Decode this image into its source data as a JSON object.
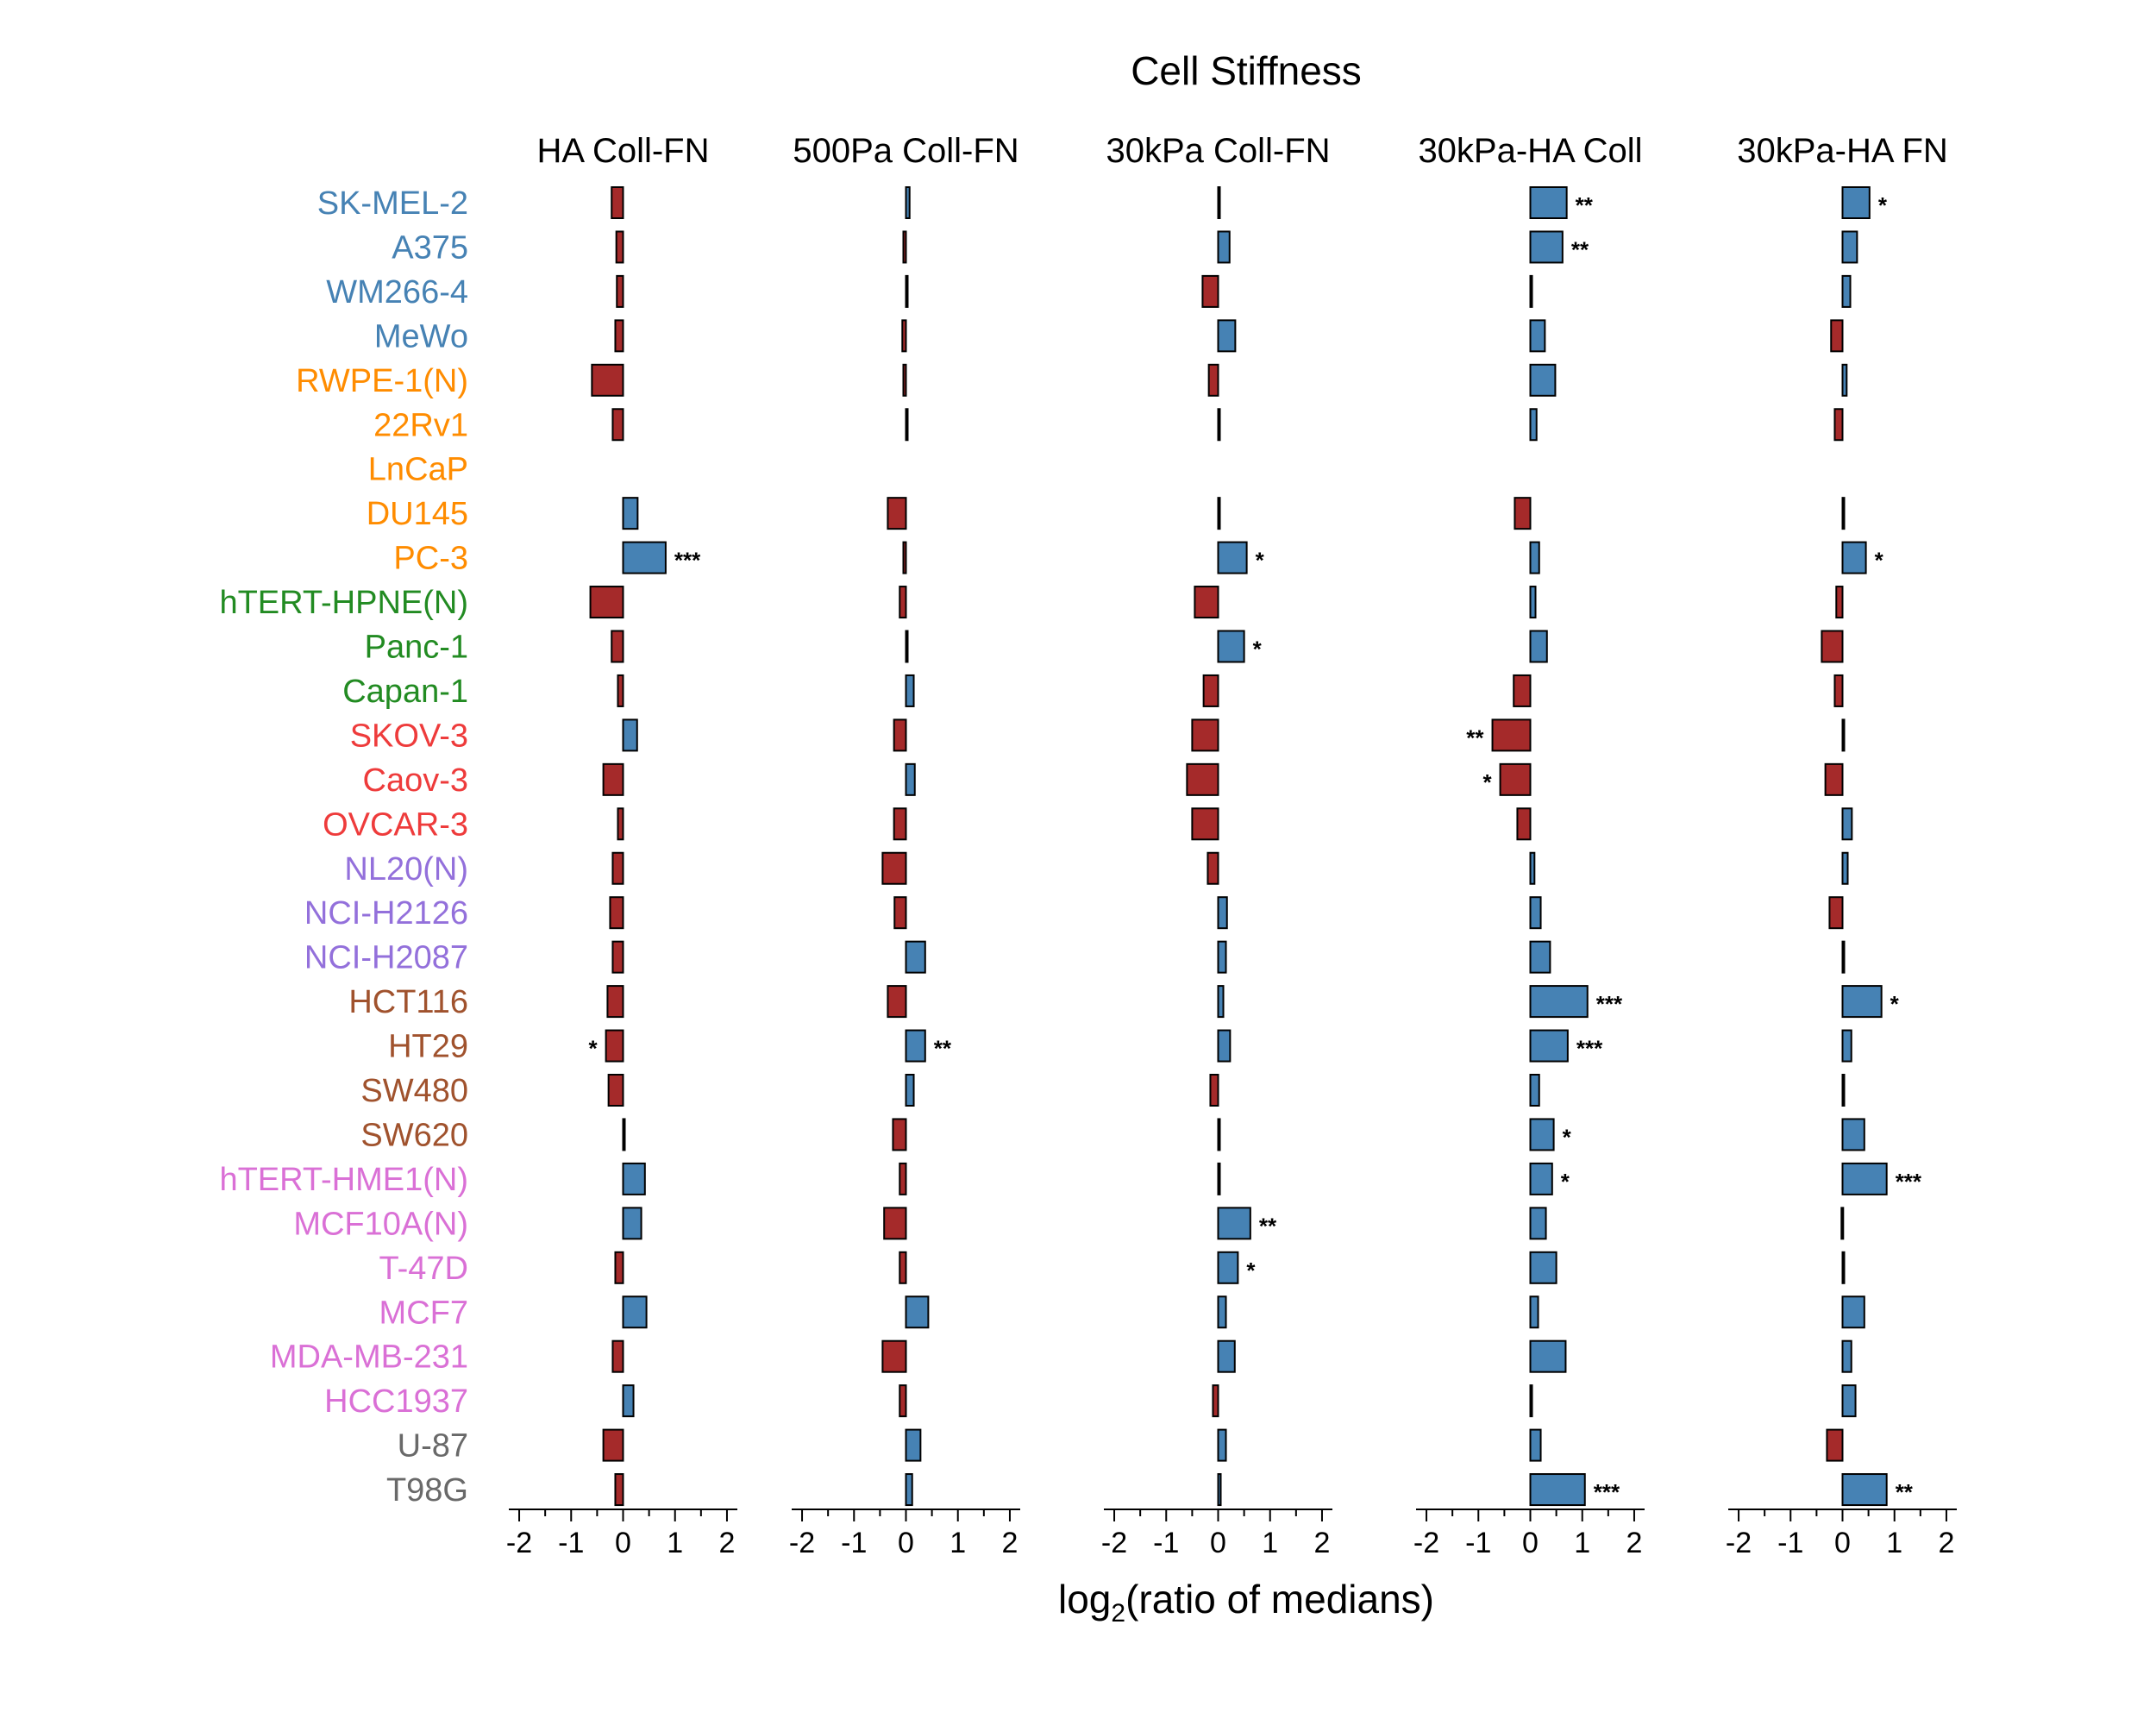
{
  "chart_data": {
    "type": "bar",
    "title": "Cell Stiffness",
    "xlabel": "log2(ratio of medians)",
    "xlabel_parts": {
      "base": "log",
      "subscript": "2",
      "rest": "(ratio of medians)"
    },
    "xlim": [
      -2.2,
      2.2
    ],
    "xticks": [
      -2,
      -1,
      0,
      1,
      2
    ],
    "xtick_labels": [
      "-2",
      "-1",
      "0",
      "1",
      "2"
    ],
    "colors": {
      "positive": "#4682B4",
      "negative": "#A52A2A"
    },
    "categories": [
      "SK-MEL-2",
      "A375",
      "WM266-4",
      "MeWo",
      "RWPE-1(N)",
      "22Rv1",
      "LnCaP",
      "DU145",
      "PC-3",
      "hTERT-HPNE(N)",
      "Panc-1",
      "Capan-1",
      "SKOV-3",
      "Caov-3",
      "OVCAR-3",
      "NL20(N)",
      "NCI-H2126",
      "NCI-H2087",
      "HCT116",
      "HT29",
      "SW480",
      "SW620",
      "hTERT-HME1(N)",
      "MCF10A(N)",
      "T-47D",
      "MCF7",
      "MDA-MB-231",
      "HCC1937",
      "U-87",
      "T98G"
    ],
    "category_colors": [
      "#4682B4",
      "#4682B4",
      "#4682B4",
      "#4682B4",
      "#FF8C00",
      "#FF8C00",
      "#FF8C00",
      "#FF8C00",
      "#FF8C00",
      "#228B22",
      "#228B22",
      "#228B22",
      "#EE3B3B",
      "#EE3B3B",
      "#EE3B3B",
      "#9370DB",
      "#9370DB",
      "#9370DB",
      "#A0522D",
      "#A0522D",
      "#A0522D",
      "#A0522D",
      "#DA70D6",
      "#DA70D6",
      "#DA70D6",
      "#DA70D6",
      "#DA70D6",
      "#DA70D6",
      "#696969",
      "#696969"
    ],
    "series": [
      {
        "name": "HA Coll-FN",
        "values": [
          -0.22,
          -0.13,
          -0.12,
          -0.15,
          -0.6,
          -0.2,
          null,
          0.28,
          0.82,
          -0.63,
          -0.22,
          -0.1,
          0.27,
          -0.38,
          -0.1,
          -0.2,
          -0.25,
          -0.2,
          -0.3,
          -0.33,
          -0.28,
          0.0,
          0.42,
          0.35,
          -0.15,
          0.45,
          -0.2,
          0.2,
          -0.38,
          -0.15
        ],
        "stars": [
          "",
          "",
          "",
          "",
          "",
          "",
          "",
          "",
          "***",
          "",
          "",
          "",
          "",
          "",
          "",
          "",
          "",
          "",
          "",
          "*",
          "",
          "",
          "",
          "",
          "",
          "",
          "",
          "",
          "",
          ""
        ]
      },
      {
        "name": "500Pa Coll-FN",
        "values": [
          0.07,
          -0.05,
          0.0,
          -0.07,
          -0.05,
          0.0,
          null,
          -0.35,
          -0.05,
          -0.12,
          0.03,
          0.15,
          -0.23,
          0.17,
          -0.23,
          -0.45,
          -0.22,
          0.37,
          -0.35,
          0.37,
          0.15,
          -0.25,
          -0.12,
          -0.42,
          -0.12,
          0.43,
          -0.45,
          -0.12,
          0.28,
          0.12
        ],
        "stars": [
          "",
          "",
          "",
          "",
          "",
          "",
          "",
          "",
          "",
          "",
          "",
          "",
          "",
          "",
          "",
          "",
          "",
          "",
          "",
          "**",
          "",
          "",
          "",
          "",
          "",
          "",
          "",
          "",
          "",
          ""
        ]
      },
      {
        "name": "30kPa Coll-FN",
        "values": [
          0.0,
          0.22,
          -0.3,
          0.33,
          -0.18,
          0.03,
          null,
          0.0,
          0.55,
          -0.45,
          0.5,
          -0.28,
          -0.5,
          -0.6,
          -0.5,
          -0.2,
          0.17,
          0.15,
          0.1,
          0.23,
          -0.15,
          0.03,
          0.0,
          0.62,
          0.38,
          0.15,
          0.32,
          -0.1,
          0.15,
          0.05
        ],
        "stars": [
          "",
          "",
          "",
          "",
          "",
          "",
          "",
          "",
          "*",
          "",
          "*",
          "",
          "",
          "",
          "",
          "",
          "",
          "",
          "",
          "",
          "",
          "",
          "",
          "**",
          "*",
          "",
          "",
          "",
          "",
          ""
        ]
      },
      {
        "name": "30kPa-HA Coll",
        "values": [
          0.7,
          0.62,
          0.0,
          0.28,
          0.48,
          0.12,
          null,
          -0.3,
          0.17,
          0.1,
          0.32,
          -0.32,
          -0.73,
          -0.58,
          -0.25,
          0.08,
          0.2,
          0.38,
          1.1,
          0.72,
          0.17,
          0.45,
          0.42,
          0.3,
          0.5,
          0.15,
          0.68,
          0.0,
          0.2,
          1.05
        ],
        "stars": [
          "**",
          "**",
          "",
          "",
          "",
          "",
          "",
          "",
          "",
          "",
          "",
          "",
          "**",
          "*",
          "",
          "",
          "",
          "",
          "***",
          "***",
          "",
          "*",
          "*",
          "",
          "",
          "",
          "",
          "",
          "",
          "***"
        ]
      },
      {
        "name": "30kPa-HA FN",
        "values": [
          0.52,
          0.28,
          0.15,
          -0.22,
          0.08,
          -0.15,
          null,
          0.0,
          0.45,
          -0.12,
          -0.4,
          -0.15,
          0.03,
          -0.33,
          0.18,
          0.1,
          -0.25,
          0.03,
          0.75,
          0.17,
          0.03,
          0.42,
          0.85,
          -0.02,
          0.0,
          0.42,
          0.17,
          0.25,
          -0.3,
          0.85
        ],
        "stars": [
          "*",
          "",
          "",
          "",
          "",
          "",
          "",
          "",
          "*",
          "",
          "",
          "",
          "",
          "",
          "",
          "",
          "",
          "",
          "*",
          "",
          "",
          "",
          "***",
          "",
          "",
          "",
          "",
          "",
          "",
          "**"
        ]
      }
    ]
  }
}
